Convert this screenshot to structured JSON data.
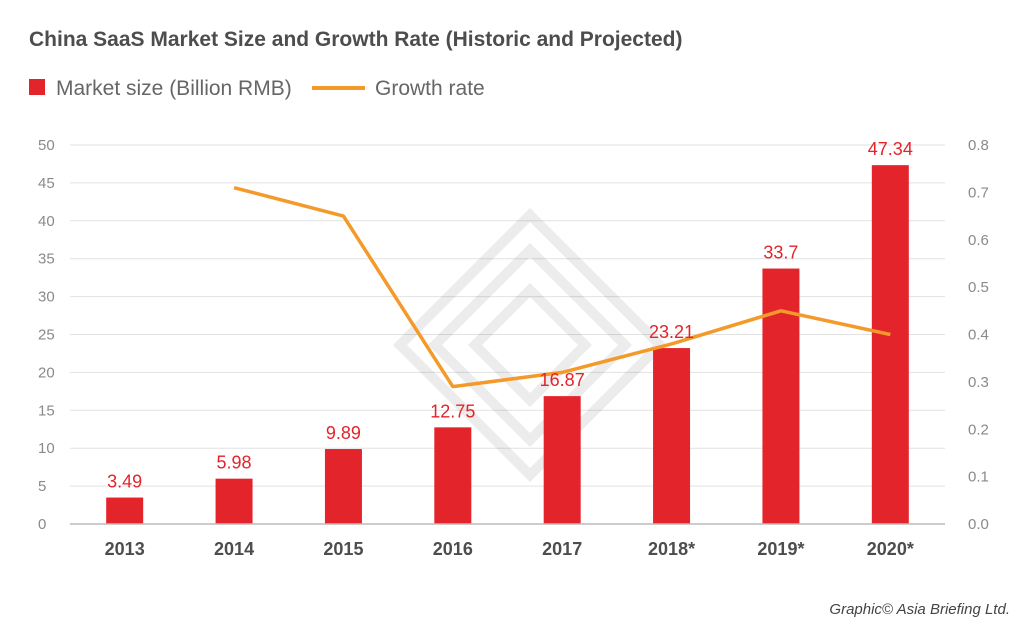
{
  "chart_data": {
    "type": "bar+line",
    "title": "China SaaS Market Size and Growth Rate (Historic and Projected)",
    "categories": [
      "2013",
      "2014",
      "2015",
      "2016",
      "2017",
      "2018*",
      "2019*",
      "2020*"
    ],
    "series": [
      {
        "name": "Market size (Billion RMB)",
        "type": "bar",
        "axis": "left",
        "color": "#e3242b",
        "values": [
          3.49,
          5.98,
          9.89,
          12.75,
          16.87,
          23.21,
          33.7,
          47.34
        ],
        "labels": [
          "3.49",
          "5.98",
          "9.89",
          "12.75",
          "16.87",
          "23.21",
          "33.7",
          "47.34"
        ]
      },
      {
        "name": "Growth rate",
        "type": "line",
        "axis": "right",
        "color": "#f39a2b",
        "values": [
          null,
          0.71,
          0.65,
          0.29,
          0.32,
          0.38,
          0.45,
          0.4
        ]
      }
    ],
    "y_left": {
      "range": [
        0,
        50
      ],
      "ticks": [
        "0",
        "5",
        "10",
        "15",
        "20",
        "25",
        "30",
        "35",
        "40",
        "45",
        "50"
      ]
    },
    "y_right": {
      "range": [
        0,
        0.8
      ],
      "ticks": [
        "0.0",
        "0.1",
        "0.2",
        "0.3",
        "0.4",
        "0.5",
        "0.6",
        "0.7",
        "0.8"
      ]
    },
    "grid": true,
    "legend_position": "top-left"
  },
  "credit": "Graphic© Asia Briefing Ltd."
}
